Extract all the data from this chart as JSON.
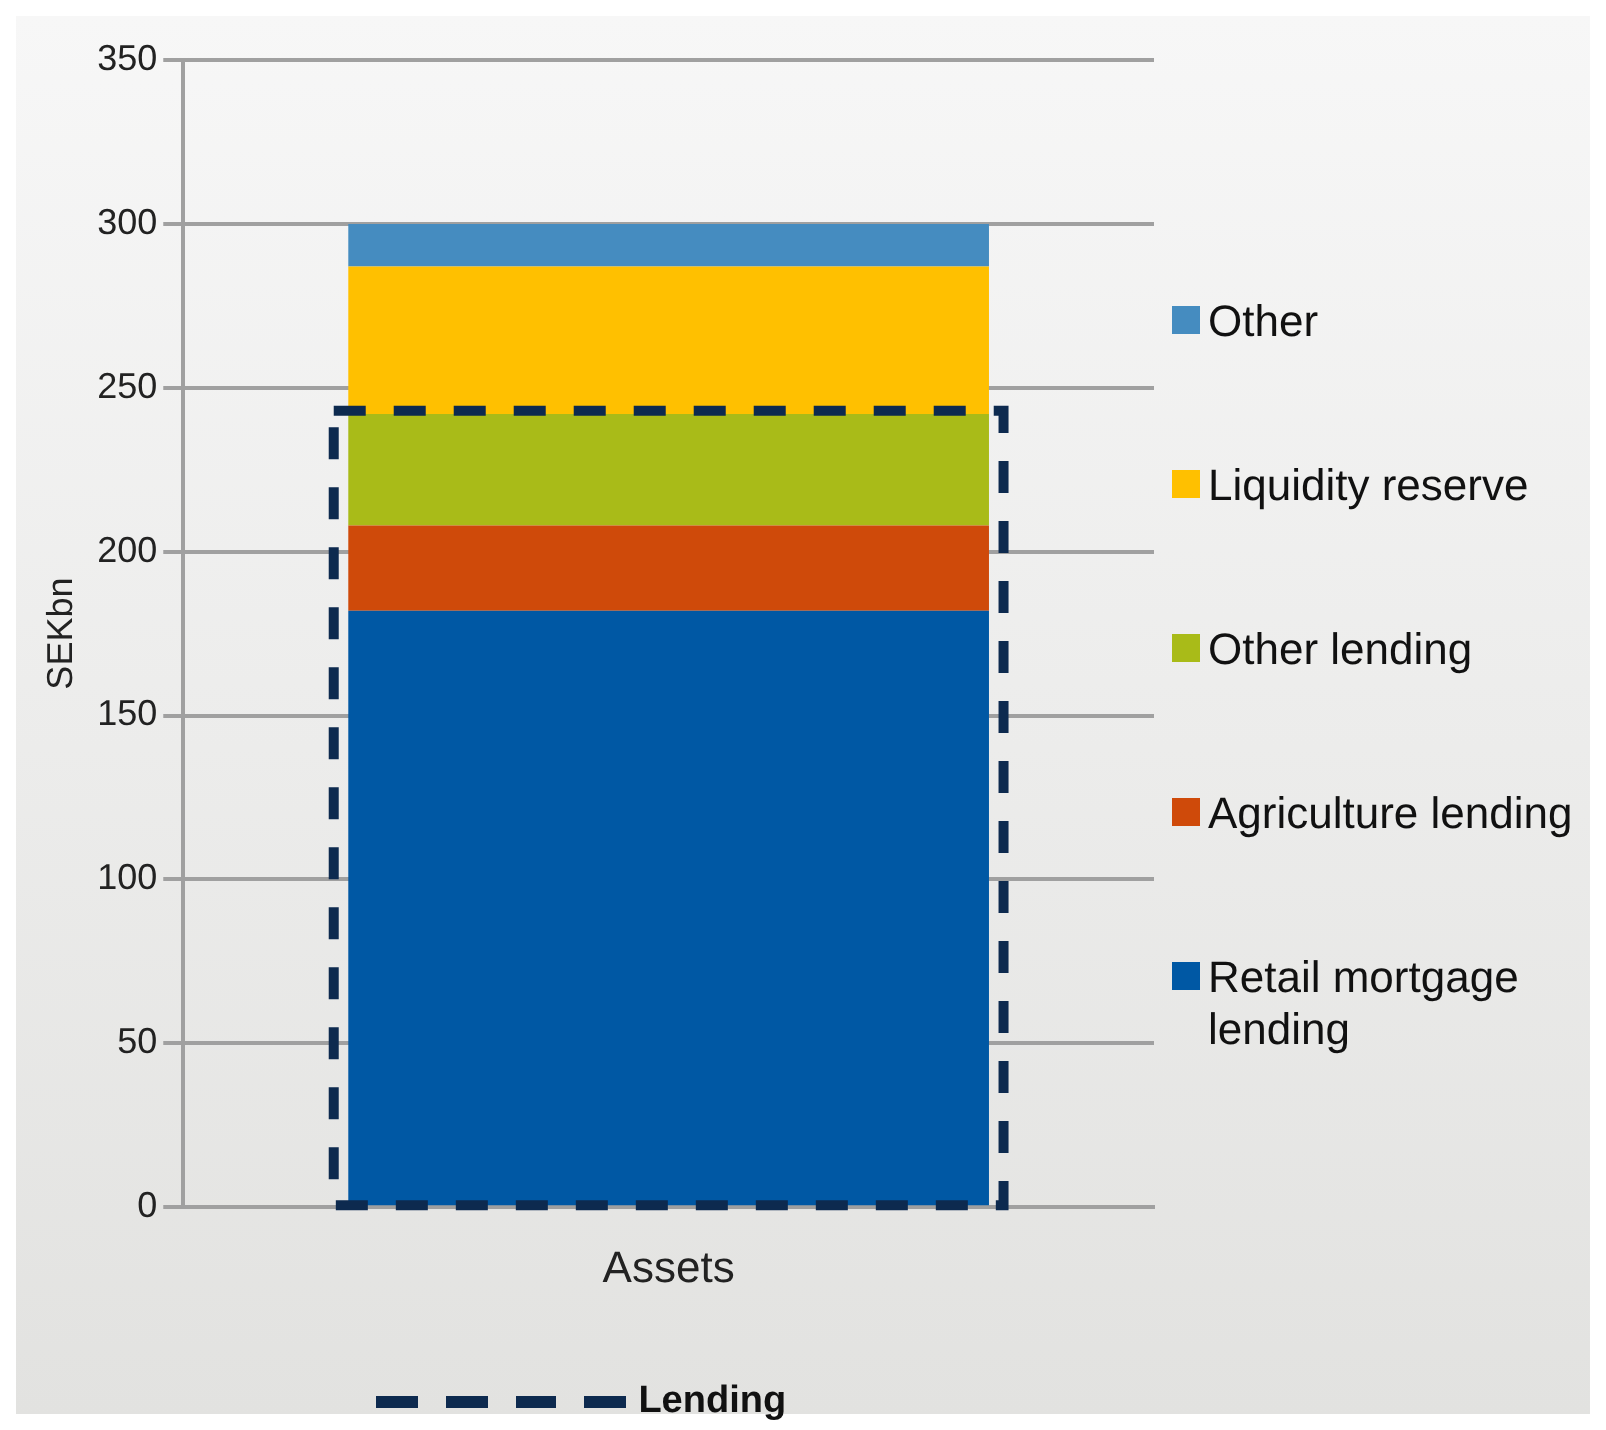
{
  "chart_data": {
    "type": "bar",
    "ylabel": "SEKbn",
    "categories": [
      "Assets"
    ],
    "series": [
      {
        "name": "Retail mortgage lending",
        "color": "#0058a4",
        "values": [
          182
        ],
        "base": [
          0
        ]
      },
      {
        "name": "Agriculture lending",
        "color": "#cf4a0a",
        "values": [
          26
        ],
        "base": [
          182
        ]
      },
      {
        "name": "Other lending",
        "color": "#a9bb18",
        "values": [
          34
        ],
        "base": [
          208
        ]
      },
      {
        "name": "Liquidity reserve",
        "color": "#ffc000",
        "values": [
          45
        ],
        "base": [
          242
        ]
      },
      {
        "name": "Other",
        "color": "#458cc0",
        "values": [
          13
        ],
        "base": [
          287
        ]
      },
      {
        "name": "Lending",
        "color": "#0d2a4f",
        "values": [
          243
        ],
        "base": [
          0
        ],
        "line_style": "dashed"
      }
    ],
    "ylim": [
      0,
      350
    ],
    "yticks": [
      0,
      50,
      100,
      150,
      200,
      250,
      300,
      350
    ],
    "grid": "y",
    "legend": "right"
  }
}
